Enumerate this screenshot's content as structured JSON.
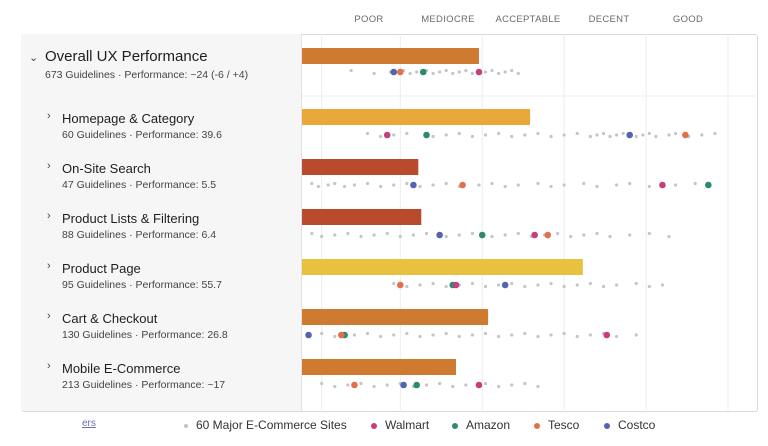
{
  "scale_labels": [
    "POOR",
    "MEDIOCRE",
    "ACCEPTABLE",
    "DECENT",
    "GOOD"
  ],
  "footer_link": "ers",
  "legend": [
    {
      "label": "60 Major E-Commerce Sites",
      "color": "#c4c4cc",
      "small": true
    },
    {
      "label": "Walmart",
      "color": "#c83d7c"
    },
    {
      "label": "Amazon",
      "color": "#2e8b6a"
    },
    {
      "label": "Tesco",
      "color": "#e2714a"
    },
    {
      "label": "Costco",
      "color": "#5463b0"
    }
  ],
  "rows": [
    {
      "title": "Overall UX Performance",
      "subtitle": "673 Guidelines · Performance: ~24 (-6 / +4)",
      "primary": true
    },
    {
      "title": "Homepage & Category",
      "subtitle": "60 Guidelines · Performance: 39.6"
    },
    {
      "title": "On-Site Search",
      "subtitle": "47 Guidelines · Performance: 5.5"
    },
    {
      "title": "Product Lists & Filtering",
      "subtitle": "88 Guidelines · Performance: 6.4"
    },
    {
      "title": "Product Page",
      "subtitle": "95 Guidelines · Performance: 55.7"
    },
    {
      "title": "Cart & Checkout",
      "subtitle": "130 Guidelines · Performance: 26.8"
    },
    {
      "title": "Mobile E-Commerce",
      "subtitle": "213 Guidelines · Performance: ~17"
    }
  ],
  "chart_data": {
    "type": "scatter",
    "scale_bands": [
      "POOR",
      "MEDIOCRE",
      "ACCEPTABLE",
      "DECENT",
      "GOOD"
    ],
    "xlim": [
      -30,
      100
    ],
    "gridlines": [
      -30,
      -24,
      0,
      25,
      50,
      75,
      100
    ],
    "series_colors": {
      "Walmart": "#c83d7c",
      "Amazon": "#2e8b6a",
      "Tesco": "#e2714a",
      "Costco": "#5463b0",
      "sites": "#c4c4cc"
    },
    "rows": [
      {
        "category": "Overall UX Performance",
        "performance": 24,
        "bar_color": "#cf7a31",
        "Walmart": 24,
        "Amazon": 7,
        "Tesco": 0,
        "Costco": -2,
        "sites": [
          -15,
          -8,
          -3,
          1,
          3,
          5,
          8,
          10,
          12,
          14,
          16,
          18,
          20,
          22,
          26,
          28,
          30,
          32,
          34,
          36
        ]
      },
      {
        "category": "Homepage & Category",
        "performance": 39.6,
        "bar_color": "#e8a83a",
        "Walmart": -4,
        "Amazon": 8,
        "Tesco": 87,
        "Costco": 70,
        "sites": [
          -10,
          -6,
          -2,
          2,
          10,
          14,
          18,
          22,
          26,
          30,
          34,
          38,
          42,
          46,
          50,
          54,
          58,
          60,
          62,
          64,
          66,
          68,
          72,
          74,
          76,
          78,
          82,
          84,
          88,
          92,
          96
        ]
      },
      {
        "category": "On-Site Search",
        "performance": 5.5,
        "bar_color": "#b84a2e",
        "Walmart": 80,
        "Amazon": 94,
        "Tesco": 19,
        "Costco": 4,
        "sites": [
          -27,
          -25,
          -22,
          -20,
          -17,
          -14,
          -10,
          -6,
          -2,
          2,
          6,
          10,
          14,
          18,
          24,
          28,
          32,
          36,
          42,
          46,
          50,
          56,
          60,
          66,
          70,
          76,
          84,
          90
        ]
      },
      {
        "category": "Product Lists & Filtering",
        "performance": 6.4,
        "bar_color": "#b84a2e",
        "Walmart": 41,
        "Amazon": 25,
        "Tesco": 45,
        "Costco": 12,
        "sites": [
          -27,
          -24,
          -20,
          -16,
          -12,
          -8,
          -4,
          0,
          4,
          8,
          14,
          18,
          22,
          28,
          32,
          36,
          40,
          44,
          48,
          52,
          56,
          60,
          64,
          70,
          76,
          82
        ]
      },
      {
        "category": "Product Page",
        "performance": 55.7,
        "bar_color": "#e8c23e",
        "Walmart": 17,
        "Amazon": 16,
        "Tesco": 0,
        "Costco": 32,
        "sites": [
          -2,
          2,
          6,
          10,
          14,
          18,
          22,
          26,
          30,
          34,
          38,
          42,
          46,
          50,
          54,
          58,
          62,
          66,
          72,
          76,
          80
        ]
      },
      {
        "category": "Cart & Checkout",
        "performance": 26.8,
        "bar_color": "#cf7a31",
        "Walmart": 63,
        "Amazon": -17,
        "Tesco": -18,
        "Costco": -28,
        "sites": [
          -24,
          -20,
          -14,
          -10,
          -6,
          -2,
          2,
          6,
          10,
          14,
          18,
          22,
          26,
          30,
          34,
          38,
          42,
          46,
          50,
          54,
          58,
          62,
          66,
          72
        ]
      },
      {
        "category": "Mobile E-Commerce",
        "performance": 17,
        "bar_color": "#cf7a31",
        "Walmart": 24,
        "Amazon": 5,
        "Tesco": -14,
        "Costco": 1,
        "sites": [
          -24,
          -20,
          -16,
          -12,
          -8,
          -4,
          0,
          4,
          8,
          12,
          16,
          20,
          26,
          30,
          34,
          38,
          42
        ]
      }
    ]
  }
}
